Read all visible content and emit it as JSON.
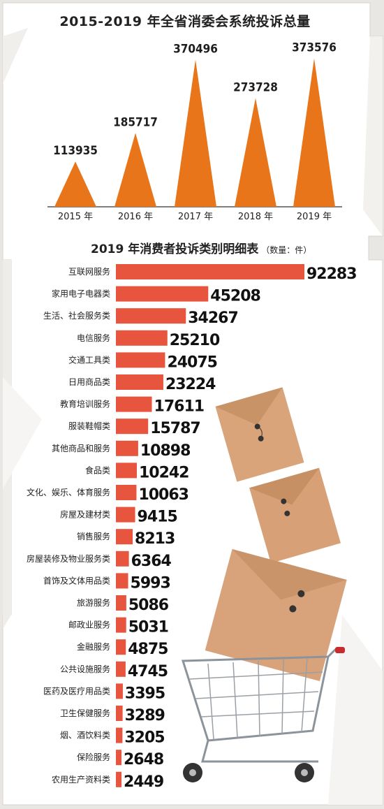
{
  "charts_title": "2015-2019 年全省消委会系统投诉总量",
  "chart_data": [
    {
      "type": "area",
      "title": "2015-2019 年全省消委会系统投诉总量",
      "categories": [
        "2015 年",
        "2016 年",
        "2017 年",
        "2018 年",
        "2019 年"
      ],
      "values": [
        113935,
        185717,
        370496,
        273728,
        373576
      ],
      "ylim": [
        0,
        380000
      ],
      "grid": false,
      "color": "#e8751a"
    },
    {
      "type": "bar",
      "orientation": "horizontal",
      "title": "2019 年消费者投诉类别明细表",
      "unit_note": "（数量：件）",
      "categories": [
        "互联网服务",
        "家用电子电器类",
        "生活、社会服务类",
        "电信服务",
        "交通工具类",
        "日用商品类",
        "教育培训服务",
        "服装鞋帽类",
        "其他商品和服务",
        "食品类",
        "文化、娱乐、体育服务",
        "房屋及建材类",
        "销售服务",
        "房屋装修及物业服务类",
        "首饰及文体用品类",
        "旅游服务",
        "邮政业服务",
        "金融服务",
        "公共设施服务",
        "医药及医疗用品类",
        "卫生保健服务",
        "烟、酒饮料类",
        "保险服务",
        "农用生产资料类"
      ],
      "values": [
        92283,
        45208,
        34267,
        25210,
        24075,
        23224,
        17611,
        15787,
        10898,
        10242,
        10063,
        9415,
        8213,
        6364,
        5993,
        5086,
        5031,
        4875,
        4745,
        3395,
        3289,
        3205,
        2648,
        2449
      ],
      "grid": false,
      "color": "#e8553e"
    }
  ]
}
